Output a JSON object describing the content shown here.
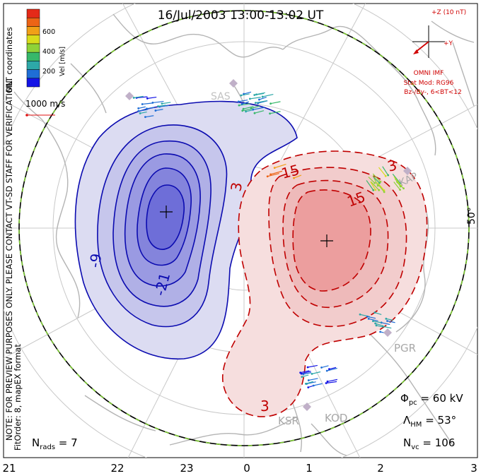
{
  "title": "16/Jul/2003 13:00-13:02 UT",
  "side_note_1": "NOTE: FOR PREVIEW PURPOSES ONLY. PLEASE CONTACT VT-SD STAFF FOR VERIFICATION.",
  "side_note_2": "FitOrder: 8, mapEX format",
  "coords_label": "MLT coordinates",
  "colorbar": {
    "label": "Vel [m/s]",
    "ticks": [
      "600",
      "400",
      "200"
    ],
    "colors": [
      "#1414e6",
      "#1f6ed6",
      "#2da8a8",
      "#37b86a",
      "#8ed238",
      "#d8dc1c",
      "#f0a018",
      "#ec6416",
      "#e42a18"
    ]
  },
  "velocity_scale": "1000 m/s",
  "imf": {
    "z_label": "+Z (10 nT)",
    "y_label": "+Y",
    "source": "OMNI IMF",
    "model": "Stat Mod: RG96",
    "condition": "Bz-/By-, 6<BT<12"
  },
  "latitude_label": "50°",
  "contours": {
    "neg_labels": [
      "-9",
      "-21"
    ],
    "pos_labels": [
      "3",
      "15",
      "15",
      "3",
      "3"
    ]
  },
  "stations": [
    "KAP",
    "PGR",
    "KSR",
    "KOD",
    "SAS"
  ],
  "stats": {
    "phi_pc": "Φ",
    "phi_pc_sub": "pc",
    "phi_pc_val": " = 60 kV",
    "lambda": "Λ",
    "lambda_sub": "HM",
    "lambda_val": " = 53°",
    "nvc": "N",
    "nvc_sub": "vc",
    "nvc_val": " = 106",
    "nrads": "N",
    "nrads_sub": "rads",
    "nrads_val": " = 7"
  },
  "mlt_axis": [
    "21",
    "22",
    "23",
    "0",
    "1",
    "2",
    "3"
  ],
  "colors": {
    "negative": "#0b0bb0",
    "positive": "#c00000",
    "land": "#b4b4b4",
    "boundary_green": "#7cc832"
  }
}
